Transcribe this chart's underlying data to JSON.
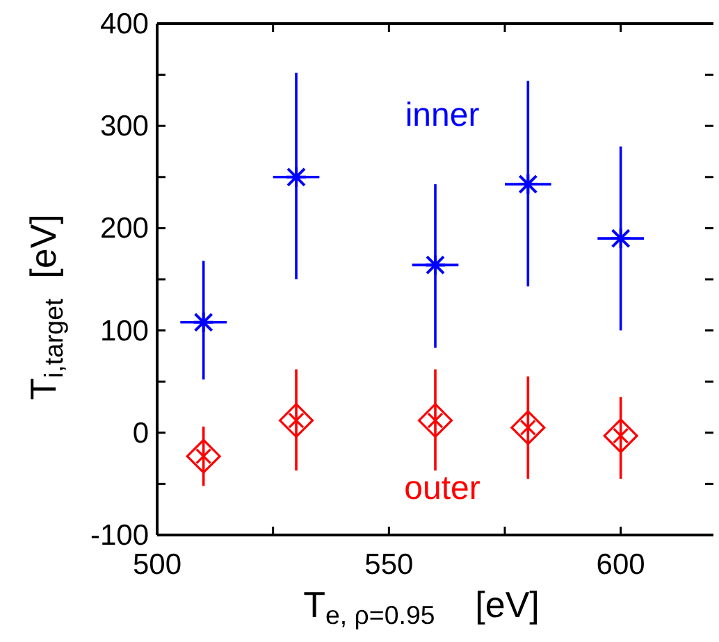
{
  "chart_data": {
    "type": "scatter",
    "xlabel": "T$_{e, ρ=0.95}$    [eV]",
    "ylabel": "T$_{i,target}$  [eV]",
    "x": [
      510,
      530,
      560,
      580,
      600
    ],
    "series": [
      {
        "name": "inner",
        "color": "#0000ff",
        "marker": "cross",
        "values": [
          108,
          250,
          164,
          243,
          190
        ],
        "xerrors": [
          5,
          5,
          5,
          5,
          5
        ],
        "errors": [
          [
            52,
            168
          ],
          [
            150,
            352
          ],
          [
            83,
            243
          ],
          [
            143,
            344
          ],
          [
            100,
            280
          ]
        ]
      },
      {
        "name": "outer",
        "color": "#ff0000",
        "marker": "diamond",
        "values": [
          -23,
          12,
          12,
          5,
          -3
        ],
        "errors": [
          [
            -52,
            6
          ],
          [
            -37,
            62
          ],
          [
            -37,
            62
          ],
          [
            -45,
            55
          ],
          [
            -45,
            35
          ]
        ]
      }
    ],
    "xlim": [
      500,
      620
    ],
    "xticks": [
      500,
      {
        "value": 525,
        "label": null
      },
      550,
      {
        "value": 575,
        "label": null
      },
      600
    ],
    "ylim": [
      -100,
      400
    ],
    "yticks": [
      -100,
      {
        "value": -50,
        "label": null
      },
      0,
      {
        "value": 50,
        "label": null
      },
      100,
      {
        "value": 150,
        "label": null
      },
      200,
      {
        "value": 250,
        "label": null
      },
      300,
      {
        "value": 350,
        "label": null
      },
      400
    ],
    "grid": false,
    "legend": false
  }
}
